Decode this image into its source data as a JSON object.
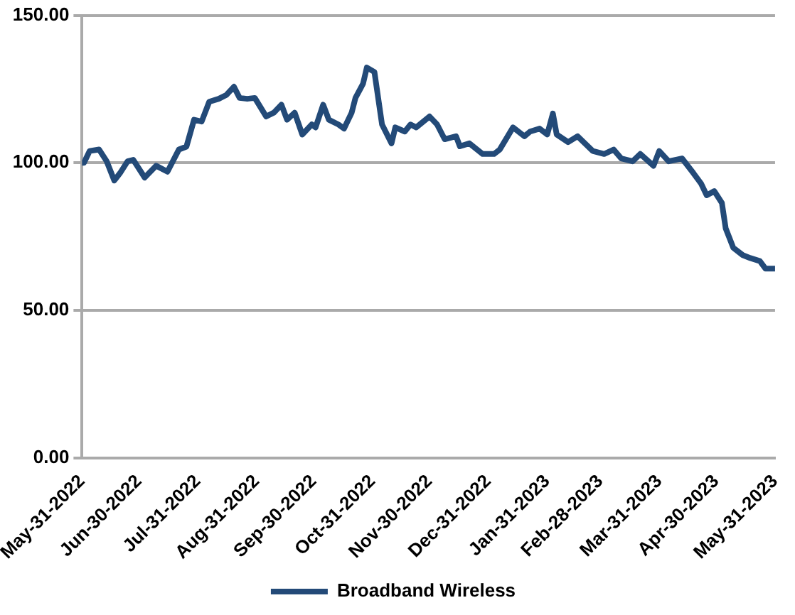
{
  "chart_data": {
    "type": "line",
    "x": [
      "2022-05-31",
      "2022-06-01",
      "2022-06-04",
      "2022-06-09",
      "2022-06-13",
      "2022-06-17",
      "2022-06-20",
      "2022-06-24",
      "2022-06-27",
      "2022-07-03",
      "2022-07-09",
      "2022-07-15",
      "2022-07-21",
      "2022-07-25",
      "2022-07-29",
      "2022-08-02",
      "2022-08-06",
      "2022-08-11",
      "2022-08-15",
      "2022-08-19",
      "2022-08-22",
      "2022-08-26",
      "2022-08-30",
      "2022-09-05",
      "2022-09-09",
      "2022-09-13",
      "2022-09-16",
      "2022-09-20",
      "2022-09-24",
      "2022-09-29",
      "2022-10-01",
      "2022-10-05",
      "2022-10-08",
      "2022-10-13",
      "2022-10-16",
      "2022-10-20",
      "2022-10-22",
      "2022-10-26",
      "2022-10-28",
      "2022-11-01",
      "2022-11-05",
      "2022-11-10",
      "2022-11-12",
      "2022-11-17",
      "2022-11-20",
      "2022-11-23",
      "2022-11-30",
      "2022-12-04",
      "2022-12-08",
      "2022-12-14",
      "2022-12-16",
      "2022-12-21",
      "2022-12-28",
      "2023-01-03",
      "2023-01-06",
      "2023-01-13",
      "2023-01-19",
      "2023-01-22",
      "2023-01-27",
      "2023-01-31",
      "2023-02-03",
      "2023-02-05",
      "2023-02-11",
      "2023-02-16",
      "2023-02-24",
      "2023-03-02",
      "2023-03-07",
      "2023-03-11",
      "2023-03-17",
      "2023-03-21",
      "2023-03-28",
      "2023-03-31",
      "2023-04-05",
      "2023-04-12",
      "2023-04-18",
      "2023-04-22",
      "2023-04-25",
      "2023-04-29",
      "2023-05-03",
      "2023-05-05",
      "2023-05-09",
      "2023-05-14",
      "2023-05-18",
      "2023-05-23",
      "2023-05-26",
      "2023-05-31"
    ],
    "series": [
      {
        "name": "Broadband Wireless",
        "color": "#234a78",
        "values": [
          100,
          100,
          104,
          104.5,
          100.5,
          94,
          96.5,
          100.5,
          101,
          95,
          99,
          97,
          104.5,
          105.5,
          114.6,
          114,
          120.7,
          121.7,
          123,
          125.8,
          122,
          121.7,
          122,
          115.7,
          117,
          119.7,
          114.6,
          117,
          109.6,
          113,
          112,
          119.7,
          114.6,
          113,
          111.6,
          117,
          122,
          126.8,
          132.3,
          130.8,
          113,
          106.6,
          112,
          110.6,
          113,
          112,
          115.7,
          113,
          108,
          109,
          105.6,
          106.6,
          103,
          103,
          104.5,
          112,
          109,
          110.6,
          111.6,
          109.6,
          116.7,
          109.6,
          107,
          109,
          104,
          103,
          104.5,
          101.5,
          100.5,
          103,
          99,
          104,
          100.5,
          101.5,
          96.5,
          93,
          89,
          90.4,
          86.4,
          77.8,
          71.2,
          68.7,
          67.7,
          66.7,
          64.1,
          64.1
        ]
      }
    ],
    "xlim": [
      "2022-05-31",
      "2023-05-31"
    ],
    "xticks": [
      {
        "value": "2022-05-31",
        "label": "May-31-2022"
      },
      {
        "value": "2022-06-30",
        "label": "Jun-30-2022"
      },
      {
        "value": "2022-07-31",
        "label": "Jul-31-2022"
      },
      {
        "value": "2022-08-31",
        "label": "Aug-31-2022"
      },
      {
        "value": "2022-09-30",
        "label": "Sep-30-2022"
      },
      {
        "value": "2022-10-31",
        "label": "Oct-31-2022"
      },
      {
        "value": "2022-11-30",
        "label": "Nov-30-2022"
      },
      {
        "value": "2022-12-31",
        "label": "Dec-31-2022"
      },
      {
        "value": "2023-01-31",
        "label": "Jan-31-2023"
      },
      {
        "value": "2023-02-28",
        "label": "Feb-28-2023"
      },
      {
        "value": "2023-03-31",
        "label": "Mar-31-2023"
      },
      {
        "value": "2023-04-30",
        "label": "Apr-30-2023"
      },
      {
        "value": "2023-05-31",
        "label": "May-31-2023"
      }
    ],
    "ylim": [
      0,
      150
    ],
    "yticks": [
      {
        "value": 0,
        "label": "0.00"
      },
      {
        "value": 50,
        "label": "50.00"
      },
      {
        "value": 100,
        "label": "100.00"
      },
      {
        "value": 150,
        "label": "150.00"
      }
    ],
    "grid": "y",
    "legend": "bottom",
    "marker": "none",
    "line_style": "solid"
  }
}
